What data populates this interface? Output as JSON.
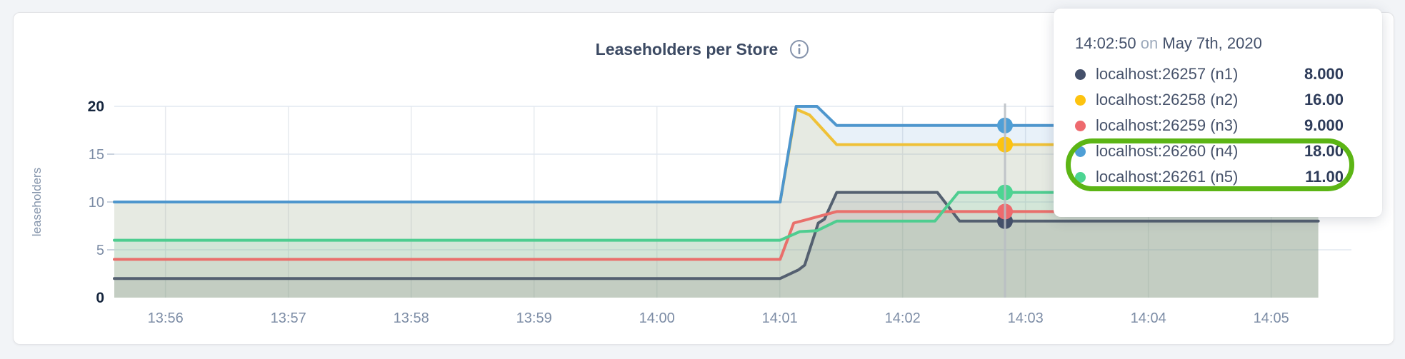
{
  "page": {
    "background": "#f2f4f7"
  },
  "header": {
    "title": "Leaseholders per Store",
    "info_icon": "circle-i",
    "title_color": "#3c4a63",
    "icon_color": "#8694ac"
  },
  "tooltip": {
    "time": "14:02:50",
    "conjunction": "on",
    "date": "May 7th, 2020",
    "series": [
      {
        "label": "localhost:26257 (n1)",
        "value": "8.000",
        "color": "#44506a"
      },
      {
        "label": "localhost:26258 (n2)",
        "value": "16.00",
        "color": "#fdc30f"
      },
      {
        "label": "localhost:26259 (n3)",
        "value": "9.000",
        "color": "#ee6a6e"
      },
      {
        "label": "localhost:26260 (n4)",
        "value": "18.00",
        "color": "#4f9fd6"
      },
      {
        "label": "localhost:26261 (n5)",
        "value": "11.00",
        "color": "#4cd592"
      }
    ],
    "highlight_ring": {
      "color": "#5cb515",
      "rows": [
        "localhost:26260 (n4)",
        "localhost:26261 (n5)"
      ]
    }
  },
  "chart_data": {
    "type": "area",
    "title": "Leaseholders per Store",
    "xlabel": "",
    "ylabel": "leaseholders",
    "x_ticks": [
      "13:56",
      "13:57",
      "13:58",
      "13:59",
      "14:00",
      "14:01",
      "14:02",
      "14:03",
      "14:04",
      "14:05"
    ],
    "y_ticks": [
      0,
      5,
      10,
      15,
      20
    ],
    "ylim": [
      0,
      20
    ],
    "x_window": [
      "13:55:35",
      "14:05:39"
    ],
    "grid": true,
    "legend_position": "tooltip-overlay",
    "hover": {
      "time": "14:02:50",
      "x_minutes": 7.25,
      "line_color": "#b9bdc3"
    },
    "series": [
      {
        "name": "localhost:26257 (n1)",
        "color": "#546070",
        "dot_color": "#44506a",
        "fill_opacity": 0.14,
        "hover_value": 8,
        "points": [
          [
            0,
            2
          ],
          [
            5.42,
            2
          ],
          [
            5.57,
            2.9
          ],
          [
            5.62,
            3.4
          ],
          [
            5.73,
            7.8
          ],
          [
            5.78,
            8.2
          ],
          [
            5.88,
            11
          ],
          [
            6.7,
            11
          ],
          [
            6.88,
            8
          ],
          [
            9.8,
            8
          ]
        ]
      },
      {
        "name": "localhost:26258 (n2)",
        "color": "#efc137",
        "dot_color": "#fdc30f",
        "fill_opacity": 0.13,
        "hover_value": 16,
        "points": [
          [
            0,
            10
          ],
          [
            5.42,
            10
          ],
          [
            5.55,
            19.7
          ],
          [
            5.66,
            19.1
          ],
          [
            5.88,
            16
          ],
          [
            9.8,
            16
          ]
        ]
      },
      {
        "name": "localhost:26259 (n3)",
        "color": "#e96f6b",
        "dot_color": "#ee6a6e",
        "fill_opacity": 0.1,
        "hover_value": 9,
        "points": [
          [
            0,
            4
          ],
          [
            5.42,
            4
          ],
          [
            5.53,
            7.8
          ],
          [
            5.62,
            8.1
          ],
          [
            5.88,
            9
          ],
          [
            9.8,
            9
          ]
        ]
      },
      {
        "name": "localhost:26260 (n4)",
        "color": "#4e96cd",
        "dot_color": "#4f9fd6",
        "fill_opacity": 0.13,
        "hover_value": 18,
        "points": [
          [
            0,
            10
          ],
          [
            5.42,
            10
          ],
          [
            5.55,
            20
          ],
          [
            5.72,
            20
          ],
          [
            5.88,
            18
          ],
          [
            9.8,
            18
          ]
        ]
      },
      {
        "name": "localhost:26261 (n5)",
        "color": "#4ecd90",
        "dot_color": "#4cd592",
        "fill_opacity": 0.12,
        "hover_value": 11,
        "points": [
          [
            0,
            6
          ],
          [
            5.42,
            6
          ],
          [
            5.58,
            6.9
          ],
          [
            5.72,
            7
          ],
          [
            5.88,
            8
          ],
          [
            6.68,
            8
          ],
          [
            6.87,
            11
          ],
          [
            9.8,
            11
          ]
        ]
      }
    ]
  }
}
